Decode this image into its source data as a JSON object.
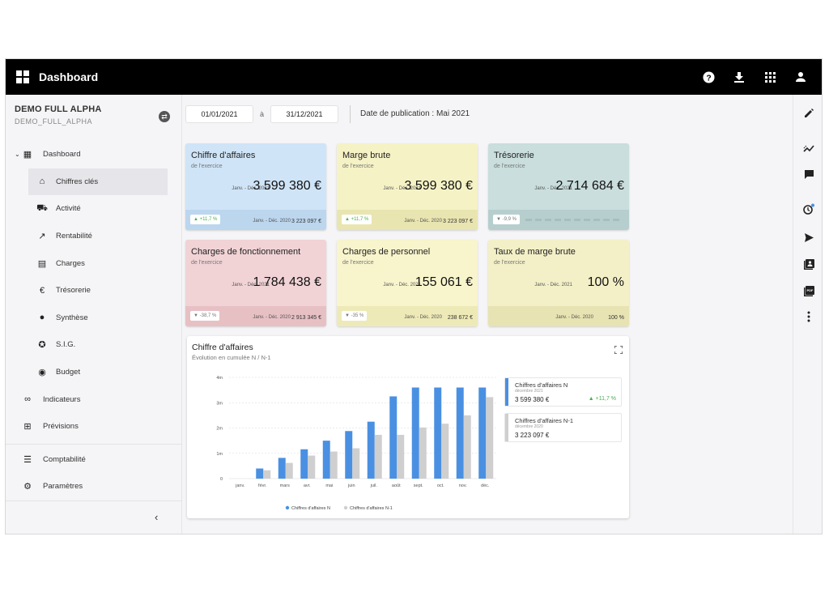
{
  "app": {
    "title": "Dashboard"
  },
  "company": {
    "name": "DEMO FULL ALPHA",
    "code": "DEMO_FULL_ALPHA"
  },
  "dates": {
    "start": "01/01/2021",
    "separator": "à",
    "end": "31/12/2021",
    "publication": "Date de publication : Mai 2021"
  },
  "nav": {
    "items": [
      {
        "label": "Dashboard",
        "icon": "dashboard-icon",
        "glyph": "▦",
        "level": 0,
        "expanded": true
      },
      {
        "label": "Chiffres clés",
        "icon": "home-icon",
        "glyph": "⌂",
        "level": 1,
        "active": true
      },
      {
        "label": "Activité",
        "icon": "cart-icon",
        "glyph": "⛟",
        "level": 1
      },
      {
        "label": "Rentabilité",
        "icon": "trending-icon",
        "glyph": "↗",
        "level": 1
      },
      {
        "label": "Charges",
        "icon": "charges-icon",
        "glyph": "▤",
        "level": 1
      },
      {
        "label": "Trésorerie",
        "icon": "euro-icon",
        "glyph": "€",
        "level": 1
      },
      {
        "label": "Synthèse",
        "icon": "check-circle-icon",
        "glyph": "●",
        "level": 1
      },
      {
        "label": "S.I.G.",
        "icon": "sig-icon",
        "glyph": "✪",
        "level": 1
      },
      {
        "label": "Budget",
        "icon": "target-icon",
        "glyph": "◉",
        "level": 1
      },
      {
        "label": "Indicateurs",
        "icon": "infinity-icon",
        "glyph": "∞",
        "level": 0
      },
      {
        "label": "Prévisions",
        "icon": "forecast-icon",
        "glyph": "⊞",
        "level": 0
      }
    ],
    "bottom": [
      {
        "label": "Comptabilité",
        "icon": "list-icon",
        "glyph": "☰"
      },
      {
        "label": "Paramètres",
        "icon": "gear-icon",
        "glyph": "⚙"
      }
    ]
  },
  "kpis": [
    {
      "title": "Chiffre d'affaires",
      "sub": "de l'exercice",
      "period": "Janv. - Déc. 2021",
      "value": "3 599 380 €",
      "badge": "▲ +11,7 %",
      "badge_dir": "up",
      "prev_period": "Janv. - Déc. 2020",
      "prev_value": "3 223 097 €",
      "bg": "#cfe4f7",
      "foot": "#bcd6ee"
    },
    {
      "title": "Marge brute",
      "sub": "de l'exercice",
      "period": "Janv. - Déc. 2021",
      "value": "3 599 380 €",
      "badge": "▲ +11,7 %",
      "badge_dir": "up",
      "prev_period": "Janv. - Déc. 2020",
      "prev_value": "3 223 097 €",
      "bg": "#f5f2c5",
      "foot": "#e9e5b0"
    },
    {
      "title": "Trésorerie",
      "sub": "de l'exercice",
      "period": "Janv. - Déc. 2021",
      "value": "2 714 684 €",
      "badge": "▼ -9,9 %",
      "badge_dir": "down",
      "prev_period": "",
      "prev_value": "",
      "bg": "#c9dedd",
      "foot": "#b6cfce"
    },
    {
      "title": "Charges de fonctionnement",
      "sub": "de l'exercice",
      "period": "Janv. - Déc. 2021",
      "value": "1 784 438 €",
      "badge": "▼ -38,7 %",
      "badge_dir": "down",
      "prev_period": "Janv. - Déc. 2020",
      "prev_value": "2 913 345 €",
      "bg": "#f1d3d6",
      "foot": "#e7c0c4"
    },
    {
      "title": "Charges de personnel",
      "sub": "de l'exercice",
      "period": "Janv. - Déc. 2021",
      "value": "155 061 €",
      "badge": "▼ -35 %",
      "badge_dir": "down",
      "prev_period": "Janv. - Déc. 2020",
      "prev_value": "238 672 €",
      "bg": "#f8f4cc",
      "foot": "#eeeab7"
    },
    {
      "title": "Taux de marge brute",
      "sub": "de l'exercice",
      "period": "Janv. - Déc. 2021",
      "value": "100 %",
      "badge": "",
      "badge_dir": "",
      "prev_period": "Janv. - Déc. 2020",
      "prev_value": "100 %",
      "bg": "#f3f0c7",
      "foot": "#e7e3b2"
    }
  ],
  "chart_card": {
    "title": "Chiffre d'affaires",
    "subtitle": "Évolution en cumulée N / N-1",
    "legend_cards": [
      {
        "name": "Chiffres d'affaires N",
        "period": "décembre 2021",
        "value": "3 599 380 €",
        "badge": "▲ +11,7 %",
        "color": "#4a90e2"
      },
      {
        "name": "Chiffres d'affaires N-1",
        "period": "décembre 2020",
        "value": "3 223 097 €",
        "badge": "",
        "color": "#cfcfcf"
      }
    ]
  },
  "chart_data": {
    "type": "bar",
    "categories": [
      "janv.",
      "févr.",
      "mars",
      "avr.",
      "mai",
      "juin",
      "juil.",
      "août",
      "sept.",
      "oct.",
      "nov.",
      "déc."
    ],
    "series": [
      {
        "name": "Chiffres d'affaires N",
        "color": "#4a90e2",
        "values": [
          0,
          0.4,
          0.82,
          1.16,
          1.5,
          1.88,
          2.25,
          3.25,
          3.6,
          3.6,
          3.6,
          3.6
        ]
      },
      {
        "name": "Chiffres d'affaires N-1",
        "color": "#cfcfcf",
        "values": [
          0,
          0.33,
          0.62,
          0.91,
          1.07,
          1.2,
          1.73,
          1.73,
          2.02,
          2.17,
          2.5,
          3.22
        ]
      }
    ],
    "yticks": [
      "0",
      "1m",
      "2m",
      "3m",
      "4m"
    ],
    "ylim": [
      0,
      4
    ],
    "grid": true,
    "legend_position": "bottom"
  }
}
